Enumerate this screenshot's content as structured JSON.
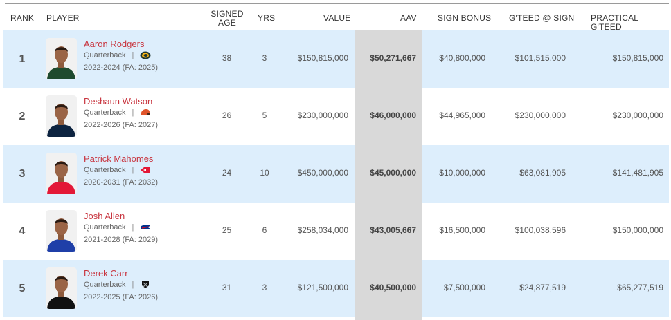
{
  "headers": {
    "rank": "RANK",
    "player": "PLAYER",
    "signed_age_line1": "SIGNED",
    "signed_age_line2": "AGE",
    "yrs": "YRS",
    "value": "VALUE",
    "aav": "AAV",
    "sign_bonus": "SIGN BONUS",
    "gteed_sign": "G'TEED @ SIGN",
    "practical_gteed": "PRACTICAL G'TEED"
  },
  "colors": {
    "link_red": "#c8353f",
    "row_blue": "#ddeefc",
    "aav_column": "#d9d9d9"
  },
  "rows": [
    {
      "rank": "1",
      "name": "Aaron Rodgers",
      "position": "Quarterback",
      "sep": "|",
      "team_icon": "packers-logo-icon",
      "years": "2022-2024 (FA: 2025)",
      "age": "38",
      "yrs": "3",
      "value": "$150,815,000",
      "aav": "$50,271,667",
      "bonus": "$40,800,000",
      "gteed_sign": "$101,515,000",
      "practical": "$150,815,000",
      "jersey": "#1e4a2e"
    },
    {
      "rank": "2",
      "name": "Deshaun Watson",
      "position": "Quarterback",
      "sep": "|",
      "team_icon": "browns-helmet-icon",
      "years": "2022-2026 (FA: 2027)",
      "age": "26",
      "yrs": "5",
      "value": "$230,000,000",
      "aav": "$46,000,000",
      "bonus": "$44,965,000",
      "gteed_sign": "$230,000,000",
      "practical": "$230,000,000",
      "jersey": "#0c2340"
    },
    {
      "rank": "3",
      "name": "Patrick Mahomes",
      "position": "Quarterback",
      "sep": "|",
      "team_icon": "chiefs-logo-icon",
      "years": "2020-2031 (FA: 2032)",
      "age": "24",
      "yrs": "10",
      "value": "$450,000,000",
      "aav": "$45,000,000",
      "bonus": "$10,000,000",
      "gteed_sign": "$63,081,905",
      "practical": "$141,481,905",
      "jersey": "#e31837"
    },
    {
      "rank": "4",
      "name": "Josh Allen",
      "position": "Quarterback",
      "sep": "|",
      "team_icon": "bills-logo-icon",
      "years": "2021-2028 (FA: 2029)",
      "age": "25",
      "yrs": "6",
      "value": "$258,034,000",
      "aav": "$43,005,667",
      "bonus": "$16,500,000",
      "gteed_sign": "$100,038,596",
      "practical": "$150,000,000",
      "jersey": "#1f3fa8"
    },
    {
      "rank": "5",
      "name": "Derek Carr",
      "position": "Quarterback",
      "sep": "|",
      "team_icon": "raiders-logo-icon",
      "years": "2022-2025 (FA: 2026)",
      "age": "31",
      "yrs": "3",
      "value": "$121,500,000",
      "aav": "$40,500,000",
      "bonus": "$7,500,000",
      "gteed_sign": "$24,877,519",
      "practical": "$65,277,519",
      "jersey": "#111111"
    }
  ]
}
